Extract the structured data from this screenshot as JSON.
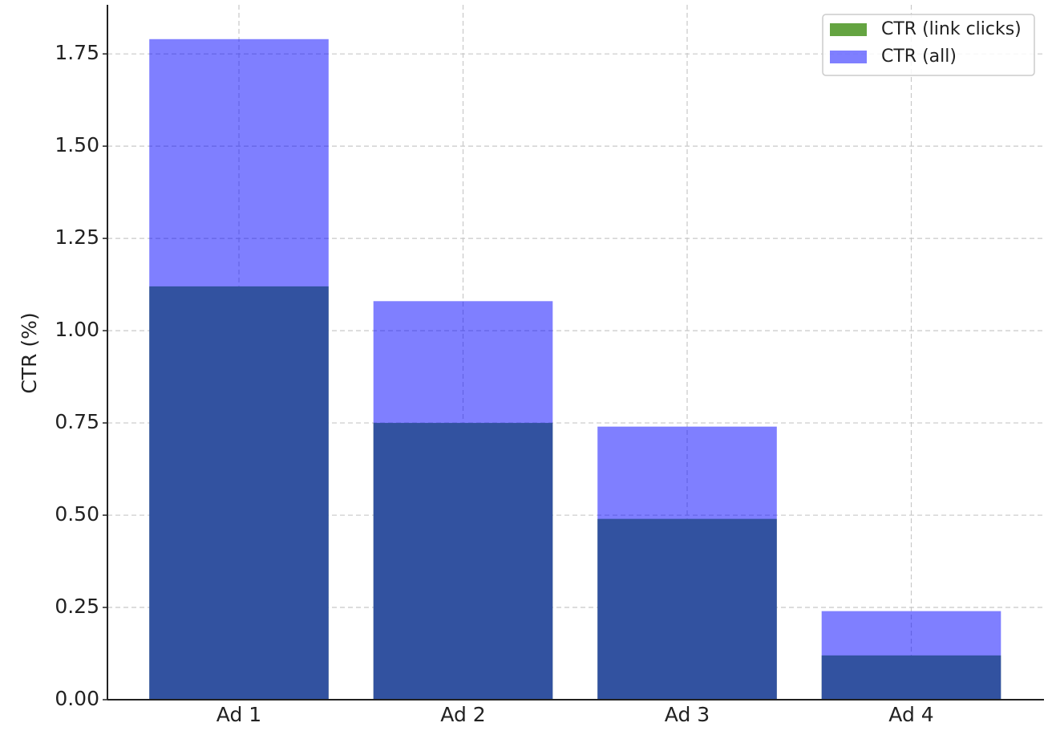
{
  "chart_data": {
    "type": "bar",
    "ylabel": "CTR (%)",
    "categories": [
      "Ad 1",
      "Ad 2",
      "Ad 3",
      "Ad 4"
    ],
    "series": [
      {
        "name": "CTR (link clicks)",
        "color": "#64a441",
        "alpha": 1,
        "values": [
          1.12,
          0.75,
          0.49,
          0.12
        ]
      },
      {
        "name": "CTR (all)",
        "color": "#0000ff",
        "alpha": 0.5,
        "values": [
          1.79,
          1.08,
          0.74,
          0.24
        ]
      }
    ],
    "ylim": [
      0,
      1.883
    ],
    "yticks": [
      {
        "value": 0,
        "label": "0.00"
      },
      {
        "value": 0.25,
        "label": "0.25"
      },
      {
        "value": 0.5,
        "label": "0.50"
      },
      {
        "value": 0.75,
        "label": "0.75"
      },
      {
        "value": 1,
        "label": "1.00"
      },
      {
        "value": 1.25,
        "label": "1.25"
      },
      {
        "value": 1.5,
        "label": "1.50"
      },
      {
        "value": 1.75,
        "label": "1.75"
      }
    ],
    "grid": true,
    "legend": "upper right"
  }
}
